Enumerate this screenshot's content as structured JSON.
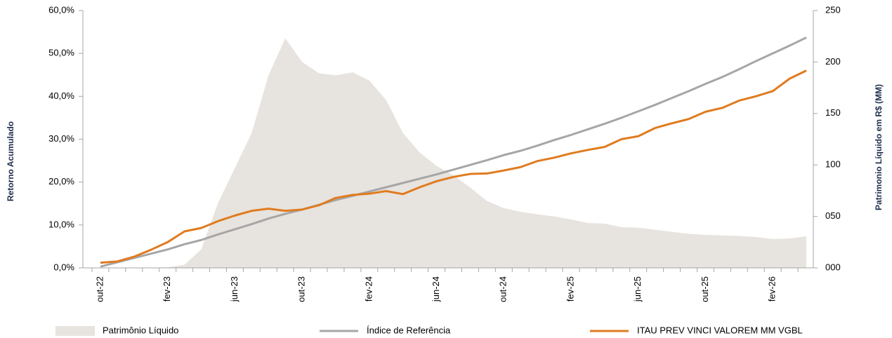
{
  "chart_data": {
    "type": "line",
    "y_label": "Retorno Acumulado",
    "y2_label": "Patrimonio Líquido em R$ (MM)",
    "categories": [
      "out-22",
      null,
      null,
      null,
      "fev-23",
      null,
      null,
      null,
      "jun-23",
      null,
      null,
      null,
      "out-23",
      null,
      null,
      null,
      "fev-24",
      null,
      null,
      null,
      "jun-24",
      null,
      null,
      null,
      "out-24",
      null,
      null,
      null,
      "fev-25",
      null,
      null,
      null,
      "jun-25",
      null,
      null,
      null,
      "out-25",
      null,
      null,
      null,
      "fev-26",
      null,
      null
    ],
    "ylim": [
      0,
      60
    ],
    "yticks": [
      {
        "value": 0,
        "label": "0,0%"
      },
      {
        "value": 10,
        "label": "10,0%"
      },
      {
        "value": 20,
        "label": "20,0%"
      },
      {
        "value": 30,
        "label": "30,0%"
      },
      {
        "value": 40,
        "label": "40,0%"
      },
      {
        "value": 50,
        "label": "50,0%"
      },
      {
        "value": 60,
        "label": "60,0%"
      }
    ],
    "y2lim": [
      0,
      250
    ],
    "y2ticks": [
      {
        "value": 0,
        "label": "000"
      },
      {
        "value": 50,
        "label": "050"
      },
      100,
      150,
      200,
      250
    ],
    "series": [
      {
        "name": "Patrimônio Líquido",
        "type": "area",
        "axis": "y2",
        "color": "#e7e3de",
        "values": [
          0,
          0,
          0,
          0,
          0.5,
          3,
          18,
          63,
          97,
          131,
          187,
          223,
          200,
          189,
          187,
          190,
          182,
          163,
          131,
          112,
          99,
          90,
          78,
          65,
          58,
          54.5,
          52,
          50,
          47,
          43.6,
          43,
          39.5,
          39,
          37,
          35,
          33,
          32,
          31.5,
          31,
          30,
          28,
          28.5,
          30.7
        ]
      },
      {
        "name": "Índice de Referência",
        "type": "line",
        "color": "#a6a6a6",
        "values": [
          0.3,
          1.3,
          2.3,
          3.3,
          4.3,
          5.5,
          6.5,
          7.8,
          9.0,
          10.2,
          11.5,
          12.6,
          13.6,
          14.7,
          15.8,
          16.8,
          17.8,
          18.8,
          19.8,
          20.8,
          21.8,
          22.9,
          24.0,
          25.1,
          26.3,
          27.3,
          28.5,
          29.8,
          31.0,
          32.3,
          33.6,
          35.0,
          36.5,
          38.0,
          39.6,
          41.2,
          42.9,
          44.5,
          46.3,
          48.2,
          50.0,
          51.8,
          53.7
        ]
      },
      {
        "name": "ITAU PREV VINCI VALOREM MM VGBL",
        "type": "line",
        "color": "#e07b1f",
        "values": [
          1.2,
          1.5,
          2.6,
          4.2,
          6.0,
          8.5,
          9.3,
          10.9,
          12.2,
          13.3,
          13.8,
          13.3,
          13.6,
          14.6,
          16.3,
          17.0,
          17.3,
          17.9,
          17.2,
          18.8,
          20.2,
          21.2,
          21.9,
          22.0,
          22.7,
          23.5,
          24.9,
          25.7,
          26.7,
          27.5,
          28.2,
          30.0,
          30.7,
          32.6,
          33.7,
          34.7,
          36.4,
          37.3,
          39.0,
          40.0,
          41.2,
          44.1,
          46.0
        ]
      }
    ]
  }
}
